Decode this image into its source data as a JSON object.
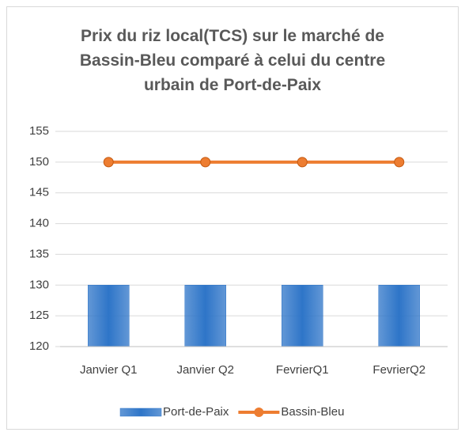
{
  "chart_data": {
    "type": "combo",
    "title": "Prix du riz local(TCS) sur le marché de Bassin-Bleu comparé à celui du centre urbain de Port-de-Paix",
    "categories": [
      "Janvier Q1",
      "Janvier Q2",
      "FevrierQ1",
      "FevrierQ2"
    ],
    "series": [
      {
        "name": "Port-de-Paix",
        "type": "bar",
        "color": "#2e75c8",
        "values": [
          130,
          130,
          130,
          130
        ]
      },
      {
        "name": "Bassin-Bleu",
        "type": "line",
        "color": "#ed7d31",
        "values": [
          150,
          150,
          150,
          150
        ]
      }
    ],
    "ylim": [
      120,
      155
    ],
    "yticks": [
      120,
      125,
      130,
      135,
      140,
      145,
      150,
      155
    ],
    "grid": true,
    "legend": "bottom"
  }
}
